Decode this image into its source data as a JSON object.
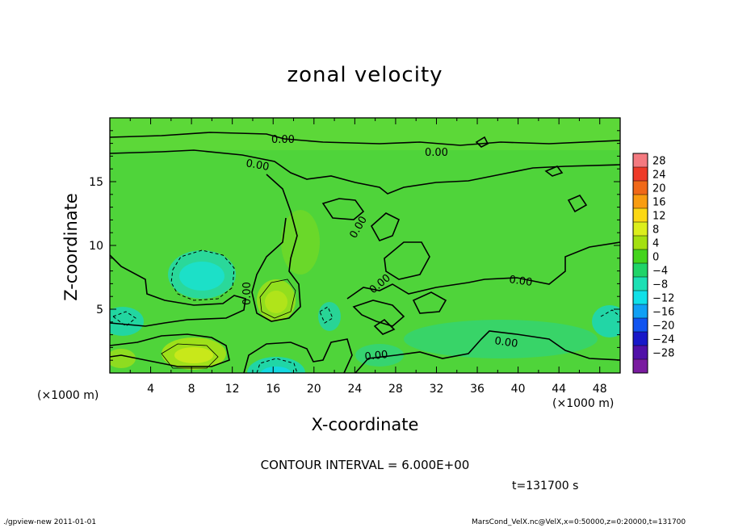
{
  "chart_data": {
    "type": "heatmap",
    "title": "zonal velocity",
    "xlabel": "X-coordinate",
    "ylabel": "Z-coordinate",
    "x_unit_label": "(×1000 m)",
    "x_range": [
      0,
      50
    ],
    "y_range": [
      0,
      20
    ],
    "x_ticks": [
      4,
      8,
      12,
      16,
      20,
      24,
      28,
      32,
      36,
      40,
      44,
      48
    ],
    "y_ticks": [
      5,
      10,
      15
    ],
    "colorbar": {
      "ticks": [
        28,
        24,
        20,
        16,
        12,
        8,
        4,
        0,
        -4,
        -8,
        -12,
        -16,
        -20,
        -24,
        -28
      ],
      "colors": [
        "#f47a80",
        "#ee3a28",
        "#f06818",
        "#f89c10",
        "#fcd814",
        "#dcee1c",
        "#a4e010",
        "#44d41c",
        "#20d468",
        "#1ce0b4",
        "#10e0e8",
        "#10a0f4",
        "#1054f0",
        "#1818c8",
        "#5010a8",
        "#7a1ca0"
      ]
    },
    "contour_labels": [
      "0.00",
      "0.00",
      "0.00",
      "0.00",
      "0.00",
      "0.00",
      "0.00",
      "0.00",
      "0.00"
    ],
    "contour_interval": "CONTOUR INTERVAL = 6.000E+00",
    "time": "t=131700  s"
  },
  "footer": {
    "left": "./gpview-new   2011-01-01",
    "right": "MarsCond_VelX.nc@VelX,x=0:50000,z=0:20000,t=131700"
  }
}
